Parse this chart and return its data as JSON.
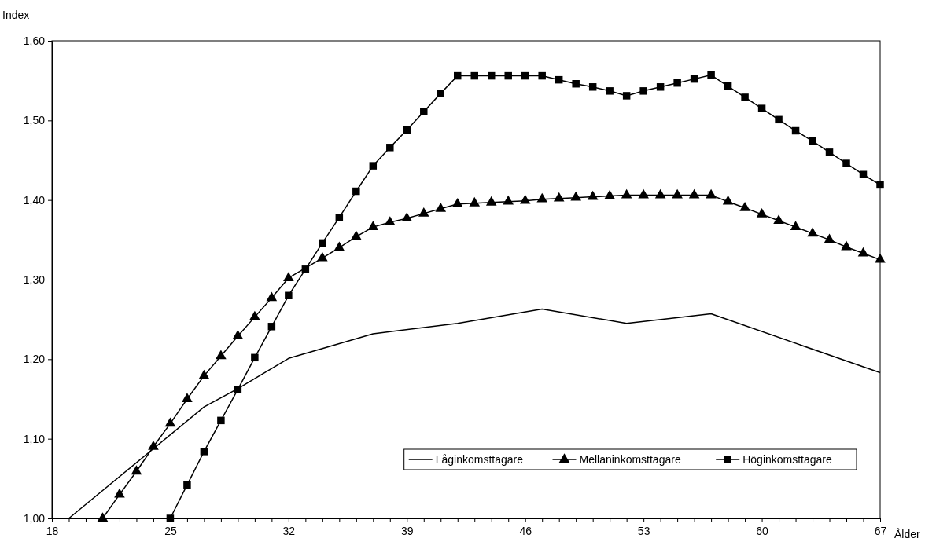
{
  "chart_data": {
    "type": "line",
    "ylabel": "Index",
    "xlabel": "Ålder",
    "xlim": [
      18,
      67
    ],
    "xticks": [
      18,
      {
        "value": 19,
        "label": null
      },
      {
        "value": 20,
        "label": null
      },
      {
        "value": 21,
        "label": null
      },
      {
        "value": 22,
        "label": null
      },
      {
        "value": 23,
        "label": null
      },
      {
        "value": 24,
        "label": null
      },
      25,
      {
        "value": 26,
        "label": null
      },
      {
        "value": 27,
        "label": null
      },
      {
        "value": 28,
        "label": null
      },
      {
        "value": 29,
        "label": null
      },
      {
        "value": 30,
        "label": null
      },
      {
        "value": 31,
        "label": null
      },
      32,
      {
        "value": 33,
        "label": null
      },
      {
        "value": 34,
        "label": null
      },
      {
        "value": 35,
        "label": null
      },
      {
        "value": 36,
        "label": null
      },
      {
        "value": 37,
        "label": null
      },
      {
        "value": 38,
        "label": null
      },
      39,
      {
        "value": 40,
        "label": null
      },
      {
        "value": 41,
        "label": null
      },
      {
        "value": 42,
        "label": null
      },
      {
        "value": 43,
        "label": null
      },
      {
        "value": 44,
        "label": null
      },
      {
        "value": 45,
        "label": null
      },
      46,
      {
        "value": 47,
        "label": null
      },
      {
        "value": 48,
        "label": null
      },
      {
        "value": 49,
        "label": null
      },
      {
        "value": 50,
        "label": null
      },
      {
        "value": 51,
        "label": null
      },
      {
        "value": 52,
        "label": null
      },
      53,
      {
        "value": 54,
        "label": null
      },
      {
        "value": 55,
        "label": null
      },
      {
        "value": 56,
        "label": null
      },
      {
        "value": 57,
        "label": null
      },
      {
        "value": 58,
        "label": null
      },
      {
        "value": 59,
        "label": null
      },
      60,
      {
        "value": 61,
        "label": null
      },
      {
        "value": 62,
        "label": null
      },
      {
        "value": 63,
        "label": null
      },
      {
        "value": 64,
        "label": null
      },
      {
        "value": 65,
        "label": null
      },
      {
        "value": 66,
        "label": null
      },
      67
    ],
    "ylim": [
      1.0,
      1.6
    ],
    "yticks": [
      {
        "value": 1.0,
        "label": "1,00"
      },
      {
        "value": 1.1,
        "label": "1,10"
      },
      {
        "value": 1.2,
        "label": "1,20"
      },
      {
        "value": 1.3,
        "label": "1,30"
      },
      {
        "value": 1.4,
        "label": "1,40"
      },
      {
        "value": 1.5,
        "label": "1,50"
      },
      {
        "value": 1.6,
        "label": "1,60"
      }
    ],
    "legend": "bottom right",
    "grid": false,
    "line_style": "solid",
    "series": [
      {
        "name": "Låginkomsttagare",
        "color": "#000000",
        "marker": "none",
        "x": [
          19,
          27,
          29,
          32,
          37,
          42,
          47,
          52,
          57,
          67
        ],
        "values": [
          1.0,
          1.14,
          1.163,
          1.201,
          1.232,
          1.245,
          1.263,
          1.245,
          1.257,
          1.183
        ]
      },
      {
        "name": "Mellaninkomsttagare",
        "color": "#000000",
        "marker": "triangle",
        "x": [
          21,
          22,
          23,
          24,
          25,
          26,
          27,
          28,
          29,
          30,
          31,
          32,
          33,
          34,
          35,
          36,
          37,
          38,
          39,
          40,
          41,
          42,
          43,
          44,
          45,
          46,
          47,
          48,
          49,
          50,
          51,
          52,
          53,
          54,
          55,
          56,
          57,
          58,
          59,
          60,
          61,
          62,
          63,
          64,
          65,
          66,
          67
        ],
        "values": [
          1.0,
          1.03,
          1.059,
          1.09,
          1.119,
          1.15,
          1.179,
          1.204,
          1.229,
          1.253,
          1.277,
          1.302,
          null,
          1.327,
          1.34,
          1.354,
          1.366,
          1.372,
          1.377,
          1.383,
          1.389,
          1.395,
          1.396,
          1.397,
          1.398,
          1.399,
          1.401,
          1.402,
          1.403,
          1.404,
          1.405,
          1.406,
          1.406,
          1.406,
          1.406,
          1.406,
          1.406,
          1.398,
          1.39,
          1.382,
          1.374,
          1.366,
          1.358,
          1.35,
          1.341,
          1.333,
          1.325
        ]
      },
      {
        "name": "Höginkomsttagare",
        "color": "#000000",
        "marker": "square",
        "x": [
          25,
          26,
          27,
          28,
          29,
          30,
          31,
          32,
          33,
          34,
          35,
          36,
          37,
          38,
          39,
          40,
          41,
          42,
          43,
          44,
          45,
          46,
          47,
          48,
          49,
          50,
          51,
          52,
          53,
          54,
          55,
          56,
          57,
          58,
          59,
          60,
          61,
          62,
          63,
          64,
          65,
          66,
          67
        ],
        "values": [
          1.0,
          1.042,
          1.084,
          1.123,
          1.162,
          1.202,
          1.241,
          1.28,
          1.313,
          1.346,
          1.378,
          1.411,
          1.443,
          1.466,
          1.488,
          1.511,
          1.534,
          1.556,
          1.556,
          1.556,
          1.556,
          1.556,
          1.556,
          1.551,
          1.546,
          1.542,
          1.537,
          1.531,
          1.537,
          1.542,
          1.547,
          1.552,
          1.557,
          1.543,
          1.529,
          1.515,
          1.501,
          1.487,
          1.474,
          1.46,
          1.446,
          1.432,
          1.419
        ]
      }
    ]
  }
}
